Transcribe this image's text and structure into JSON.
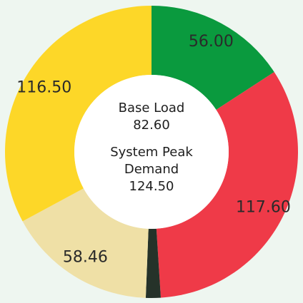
{
  "chart_data": {
    "type": "donut",
    "values": [
      56.0,
      117.6,
      5.8,
      58.46,
      116.5
    ],
    "value_labels": [
      "56.00",
      "117.60",
      null,
      "58.46",
      "116.50"
    ],
    "colors": [
      "#0a9a3e",
      "#ef3a48",
      "#253229",
      "#efe0a6",
      "#fdd728"
    ],
    "annotations": [
      "Base Load",
      "82.60",
      "System Peak Demand",
      "124.50"
    ]
  }
}
